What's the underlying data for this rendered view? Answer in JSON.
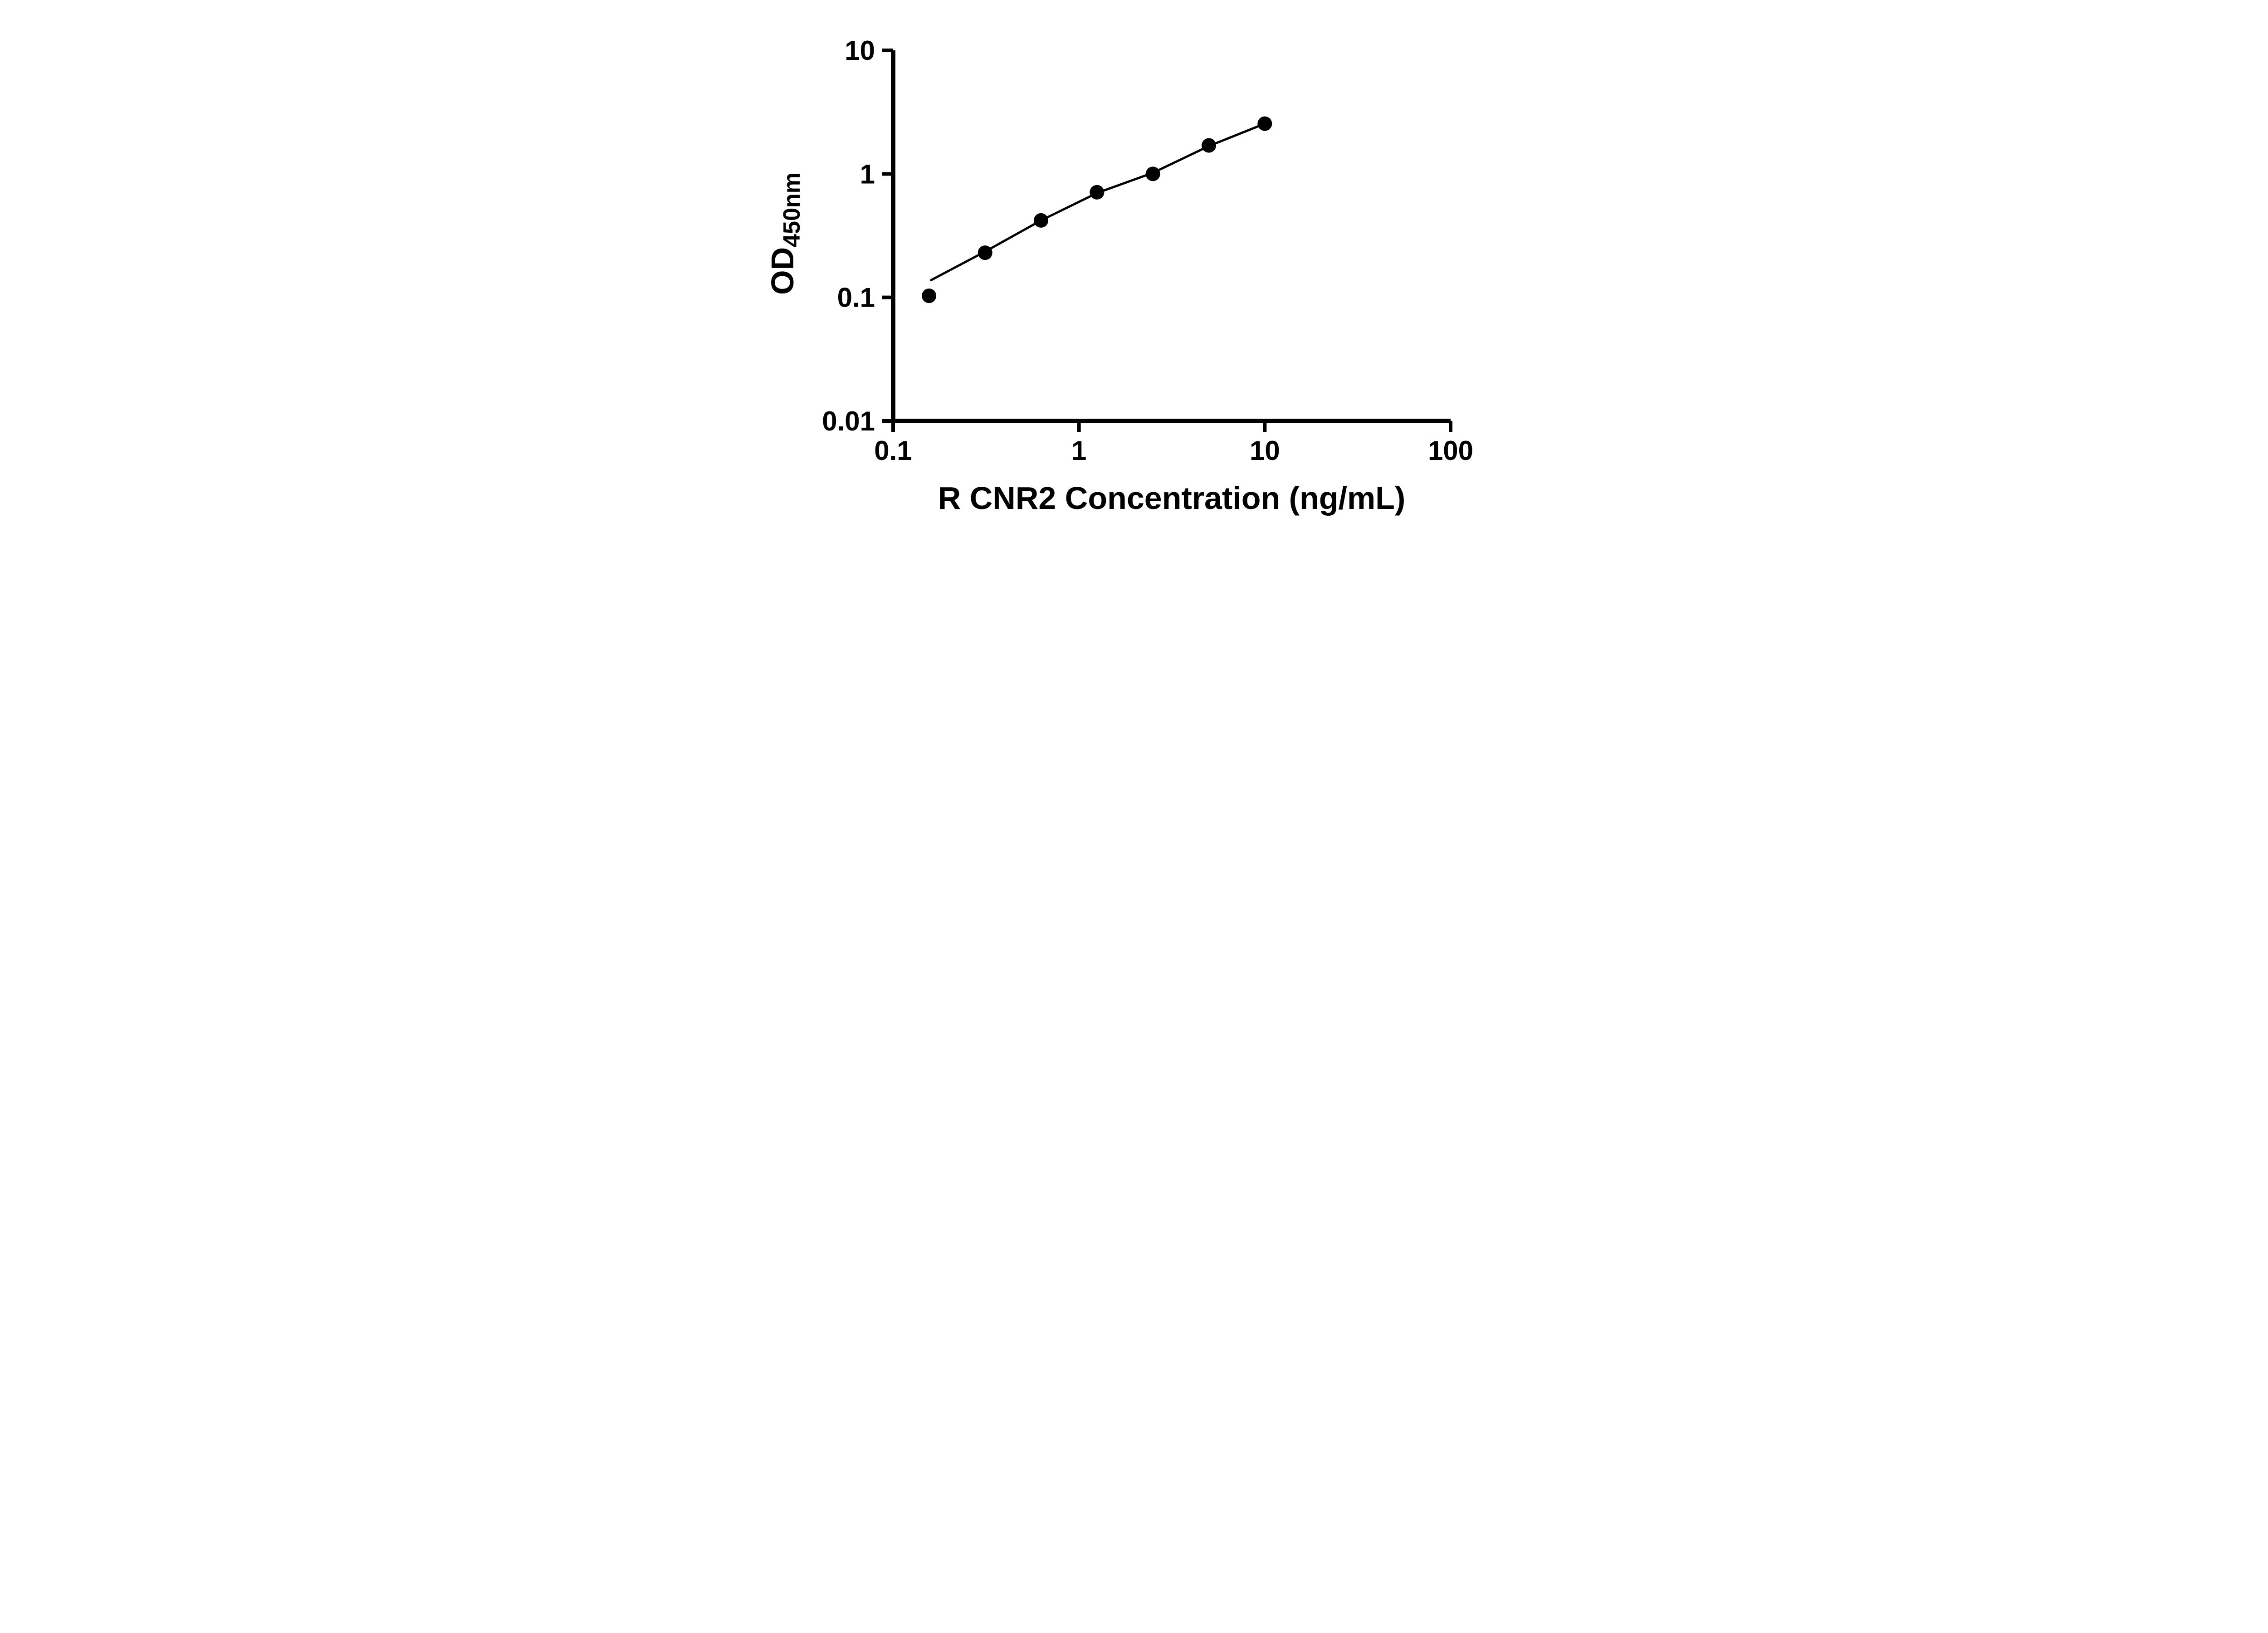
{
  "figure": {
    "background_color": "#ffffff",
    "foreground_color": "#000000"
  },
  "chart_data": {
    "type": "scatter",
    "title": "",
    "xlabel": "R CNR2 Concentration (ng/mL)",
    "ylabel_main": "OD",
    "ylabel_sub": "450nm",
    "x_scale": "log",
    "y_scale": "log",
    "xlim": [
      0.1,
      100
    ],
    "ylim": [
      0.01,
      10
    ],
    "grid": false,
    "legend": false,
    "x_ticks": [
      {
        "value": 0.1,
        "label": "0.1"
      },
      {
        "value": 1,
        "label": "1"
      },
      {
        "value": 10,
        "label": "10"
      },
      {
        "value": 100,
        "label": "100"
      }
    ],
    "y_ticks": [
      {
        "value": 0.01,
        "label": "0.01"
      },
      {
        "value": 0.1,
        "label": "0.1"
      },
      {
        "value": 1,
        "label": "1"
      },
      {
        "value": 10,
        "label": "10"
      }
    ],
    "series": [
      {
        "name": "standard-curve-points",
        "marker": "circle",
        "marker_color": "#000000",
        "points": [
          {
            "x": 0.156,
            "y": 0.103
          },
          {
            "x": 0.3125,
            "y": 0.23
          },
          {
            "x": 0.625,
            "y": 0.42
          },
          {
            "x": 1.25,
            "y": 0.71
          },
          {
            "x": 2.5,
            "y": 1.0
          },
          {
            "x": 5,
            "y": 1.7
          },
          {
            "x": 10,
            "y": 2.55
          }
        ]
      }
    ],
    "fit_line": {
      "color": "#000000",
      "points": [
        {
          "x": 0.16,
          "y": 0.138
        },
        {
          "x": 0.3125,
          "y": 0.235
        },
        {
          "x": 0.625,
          "y": 0.42
        },
        {
          "x": 1.25,
          "y": 0.7
        },
        {
          "x": 2.5,
          "y": 1.02
        },
        {
          "x": 5,
          "y": 1.68
        },
        {
          "x": 10,
          "y": 2.55
        }
      ]
    }
  }
}
